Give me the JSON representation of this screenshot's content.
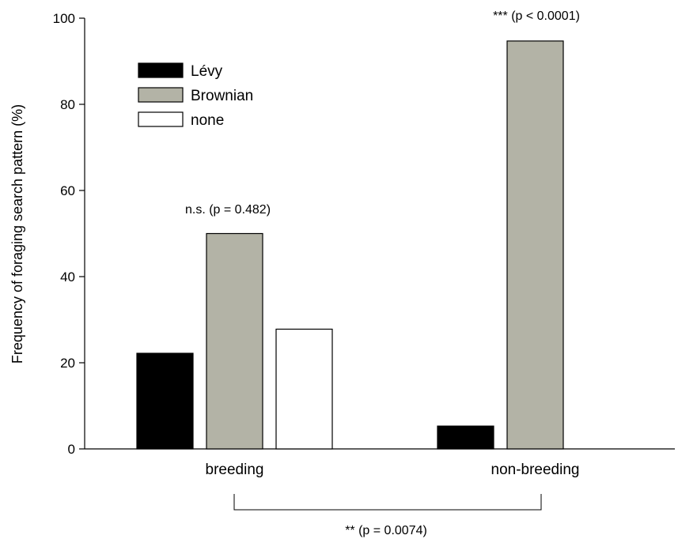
{
  "chart_data": {
    "type": "bar",
    "ylabel": "Frequency of foraging search pattern (%)",
    "xlabel": "",
    "ylim": [
      0,
      100
    ],
    "yticks": [
      0,
      20,
      40,
      60,
      80,
      100
    ],
    "categories": [
      "breeding",
      "non-breeding"
    ],
    "series": [
      {
        "name": "Lévy",
        "color": "#000000",
        "values": [
          22.2,
          5.3
        ]
      },
      {
        "name": "Brownian",
        "color": "#b3b3a6",
        "values": [
          50.0,
          94.7
        ]
      },
      {
        "name": "none",
        "color": "#ffffff",
        "values": [
          27.8,
          0
        ]
      }
    ],
    "annotations": {
      "breeding": "n.s. (p = 0.482)",
      "non_breeding": "*** (p < 0.0001)",
      "between_groups": "** (p = 0.0074)"
    },
    "legend_position": "top-left",
    "grid": false
  }
}
